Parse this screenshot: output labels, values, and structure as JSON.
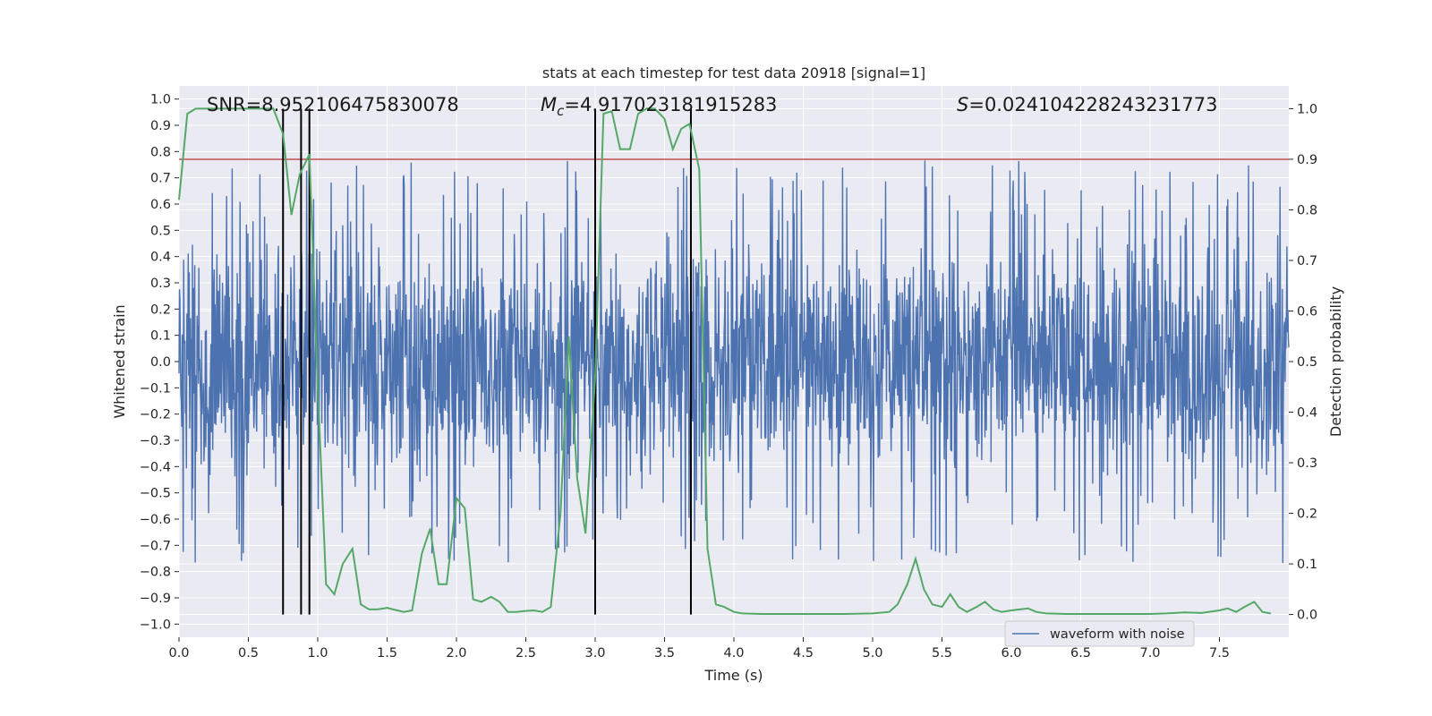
{
  "chart_data": {
    "type": "line",
    "title": "stats at each timestep for test data 20918 [signal=1]",
    "xlabel": "Time (s)",
    "ylabel_left": "Whitened strain",
    "ylabel_right": "Detection probability",
    "xlim": [
      0.0,
      8.0
    ],
    "ylim_left": [
      -1.05,
      1.05
    ],
    "ylim_right": [
      -0.045,
      1.045
    ],
    "x_ticks": [
      "0.0",
      "0.5",
      "1.0",
      "1.5",
      "2.0",
      "2.5",
      "3.0",
      "3.5",
      "4.0",
      "4.5",
      "5.0",
      "5.5",
      "6.0",
      "6.5",
      "7.0",
      "7.5"
    ],
    "y_left_ticks": [
      "-1.0",
      "-0.9",
      "-0.8",
      "-0.7",
      "-0.6",
      "-0.5",
      "-0.4",
      "-0.3",
      "-0.2",
      "-0.1",
      "0.0",
      "0.1",
      "0.2",
      "0.3",
      "0.4",
      "0.5",
      "0.6",
      "0.7",
      "0.8",
      "0.9",
      "1.0"
    ],
    "y_right_ticks": [
      "0.0",
      "0.1",
      "0.2",
      "0.3",
      "0.4",
      "0.5",
      "0.6",
      "0.7",
      "0.8",
      "0.9",
      "1.0"
    ],
    "grid": true,
    "legend_position": "lower-right",
    "annotations": {
      "snr": "SNR=8.952106475830078",
      "mc_prefix": "M",
      "mc_sub": "c",
      "mc_value": "=4.917023181915283",
      "s_prefix": "S",
      "s_value": "=0.024104228243231773"
    },
    "threshold": {
      "axis": "right",
      "value": 0.9,
      "color": "#c44e52"
    },
    "vertical_lines_x": [
      0.75,
      0.88,
      0.94,
      3.0,
      3.69
    ],
    "vertical_lines_ymax": 1.0,
    "series": [
      {
        "name": "waveform with noise",
        "axis": "left",
        "color": "#4c72b0",
        "kind": "noise"
      },
      {
        "axis": "right",
        "color": "#55a868",
        "x": [
          0.0,
          0.06,
          0.12,
          0.2,
          0.3,
          0.4,
          0.5,
          0.6,
          0.68,
          0.75,
          0.81,
          0.87,
          0.94,
          1.0,
          1.06,
          1.12,
          1.18,
          1.25,
          1.31,
          1.37,
          1.43,
          1.5,
          1.56,
          1.62,
          1.68,
          1.75,
          1.81,
          1.87,
          1.93,
          2.0,
          2.06,
          2.12,
          2.18,
          2.25,
          2.31,
          2.37,
          2.43,
          2.5,
          2.56,
          2.62,
          2.68,
          2.75,
          2.81,
          2.87,
          2.93,
          3.0,
          3.06,
          3.12,
          3.18,
          3.25,
          3.31,
          3.37,
          3.43,
          3.5,
          3.56,
          3.62,
          3.68,
          3.75,
          3.81,
          3.87,
          3.93,
          4.0,
          4.06,
          4.2,
          4.5,
          4.8,
          5.0,
          5.12,
          5.18,
          5.25,
          5.31,
          5.37,
          5.43,
          5.5,
          5.56,
          5.62,
          5.68,
          5.75,
          5.81,
          5.87,
          5.93,
          6.0,
          6.06,
          6.12,
          6.18,
          6.25,
          6.4,
          6.6,
          6.8,
          7.0,
          7.12,
          7.25,
          7.37,
          7.5,
          7.56,
          7.62,
          7.68,
          7.75,
          7.81,
          7.87
        ],
        "y": [
          0.82,
          0.99,
          1.0,
          1.0,
          1.0,
          1.0,
          1.0,
          1.0,
          1.0,
          0.95,
          0.79,
          0.87,
          0.91,
          0.45,
          0.06,
          0.04,
          0.1,
          0.13,
          0.02,
          0.01,
          0.01,
          0.013,
          0.009,
          0.005,
          0.008,
          0.12,
          0.17,
          0.06,
          0.06,
          0.23,
          0.21,
          0.03,
          0.025,
          0.035,
          0.025,
          0.005,
          0.005,
          0.007,
          0.008,
          0.005,
          0.015,
          0.2,
          0.55,
          0.27,
          0.16,
          0.47,
          0.99,
          0.995,
          0.92,
          0.92,
          0.99,
          1.0,
          1.0,
          0.98,
          0.92,
          0.96,
          0.97,
          0.88,
          0.13,
          0.02,
          0.015,
          0.005,
          0.002,
          0.001,
          0.001,
          0.001,
          0.002,
          0.005,
          0.02,
          0.06,
          0.11,
          0.05,
          0.02,
          0.015,
          0.04,
          0.015,
          0.005,
          0.015,
          0.025,
          0.01,
          0.005,
          0.008,
          0.01,
          0.012,
          0.005,
          0.002,
          0.001,
          0.001,
          0.001,
          0.001,
          0.002,
          0.004,
          0.003,
          0.008,
          0.012,
          0.005,
          0.015,
          0.025,
          0.005,
          0.002
        ]
      }
    ]
  }
}
